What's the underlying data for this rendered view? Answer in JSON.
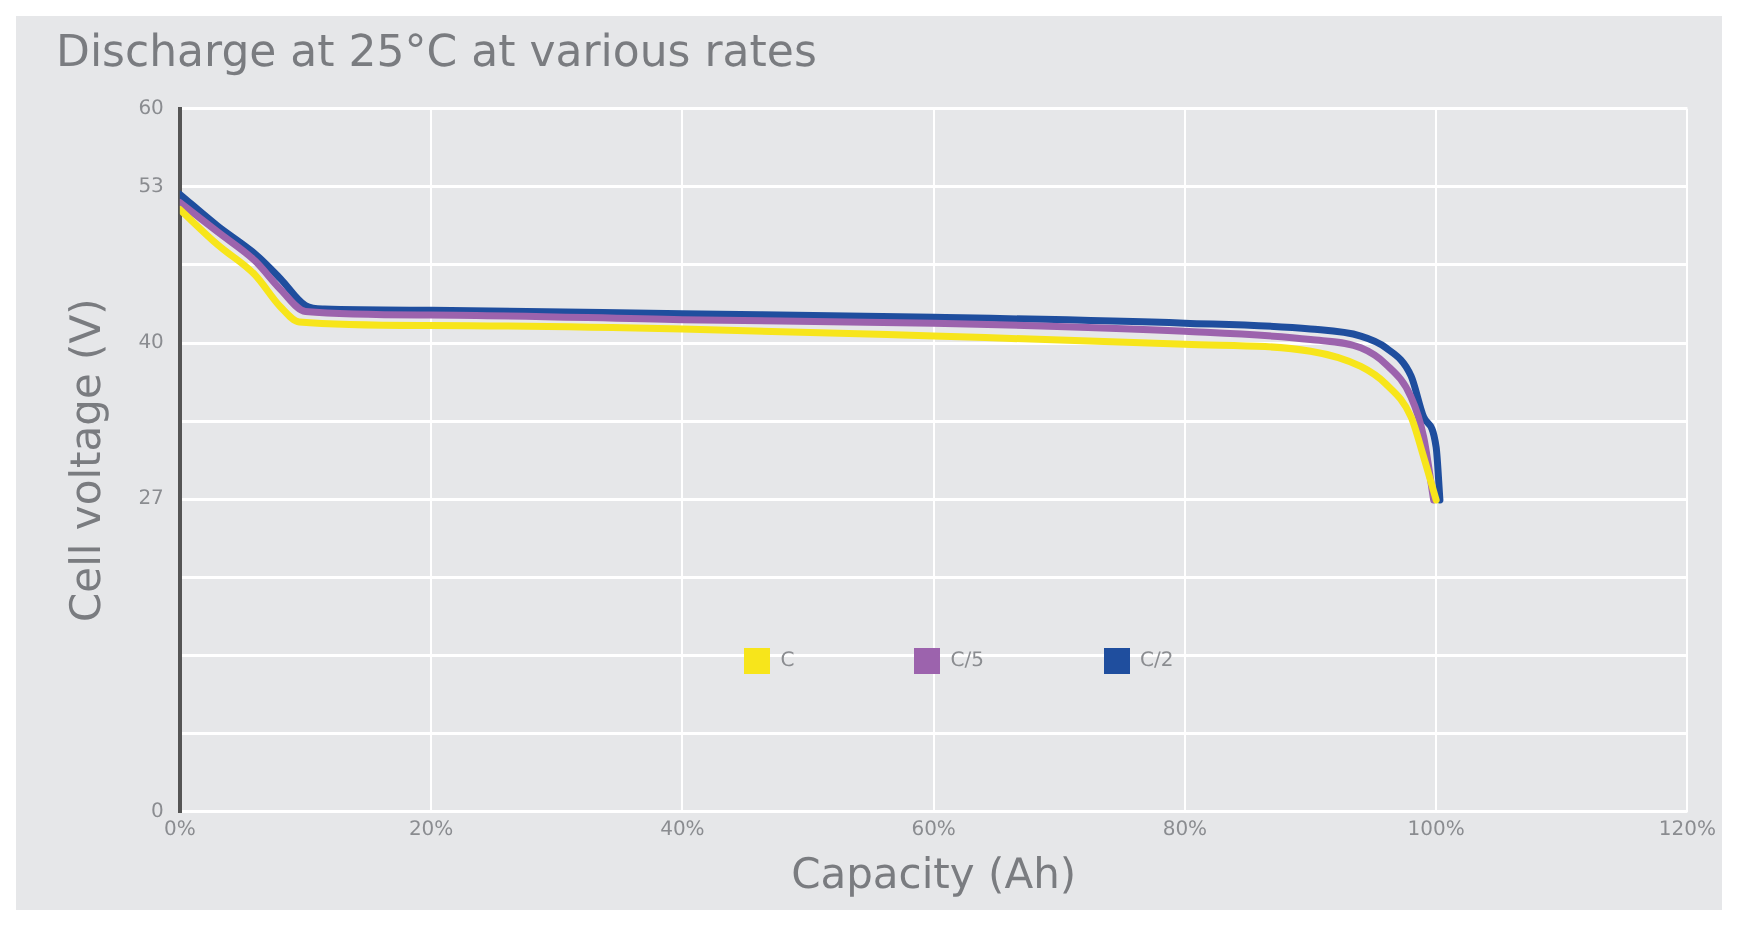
{
  "chart_data": {
    "type": "line",
    "title": "Discharge at 25°C at various rates",
    "xlabel": "Capacity (Ah)",
    "ylabel": "Cell voltage (V)",
    "xlim": [
      0,
      120
    ],
    "xticks": [
      {
        "value": 0,
        "label": "0%"
      },
      {
        "value": 20,
        "label": "20%"
      },
      {
        "value": 40,
        "label": "40%"
      },
      {
        "value": 60,
        "label": "60%"
      },
      {
        "value": 80,
        "label": "80%"
      },
      {
        "value": 100,
        "label": "100%"
      },
      {
        "value": 120,
        "label": "120%"
      }
    ],
    "ylim": [
      0,
      60
    ],
    "yticks": [
      0,
      {
        "value": 6.67,
        "label": null
      },
      {
        "value": 13.33,
        "label": null
      },
      {
        "value": 20,
        "label": null
      },
      {
        "value": 26.67,
        "label": "27"
      },
      {
        "value": 33.33,
        "label": null
      },
      40,
      {
        "value": 46.67,
        "label": null
      },
      {
        "value": 53.33,
        "label": "53"
      },
      60
    ],
    "grid": true,
    "legend": "bottom",
    "marker": "none",
    "line_style": "solid",
    "series": [
      {
        "name": "C",
        "color": "#f7e51b",
        "x": [
          0,
          3,
          6,
          8,
          9.5,
          20,
          40,
          60,
          80,
          90,
          94,
          96,
          98,
          99,
          100
        ],
        "values": [
          51.4,
          48.4,
          45.8,
          43.1,
          41.8,
          41.5,
          41.2,
          40.6,
          39.9,
          39.3,
          38.0,
          36.5,
          33.7,
          30.3,
          26.6
        ]
      },
      {
        "name": "C/5",
        "color": "#9c63ad",
        "x": [
          0,
          3,
          6,
          8,
          10,
          20,
          40,
          60,
          80,
          90,
          94,
          96,
          98,
          99,
          99.8
        ],
        "values": [
          52.0,
          49.5,
          47.0,
          44.6,
          42.7,
          42.4,
          42.0,
          41.7,
          41.0,
          40.3,
          39.6,
          38.2,
          35.4,
          32.0,
          26.6
        ]
      },
      {
        "name": "C/2",
        "color": "#1f4e9e",
        "x": [
          0,
          3,
          6,
          8,
          10,
          11.5,
          20,
          40,
          60,
          80,
          90,
          94,
          96,
          98,
          99,
          100,
          100.3
        ],
        "values": [
          52.7,
          50.0,
          47.6,
          45.5,
          43.2,
          42.9,
          42.8,
          42.5,
          42.2,
          41.7,
          41.2,
          40.6,
          39.6,
          37.2,
          33.7,
          31.1,
          26.6
        ]
      }
    ]
  }
}
